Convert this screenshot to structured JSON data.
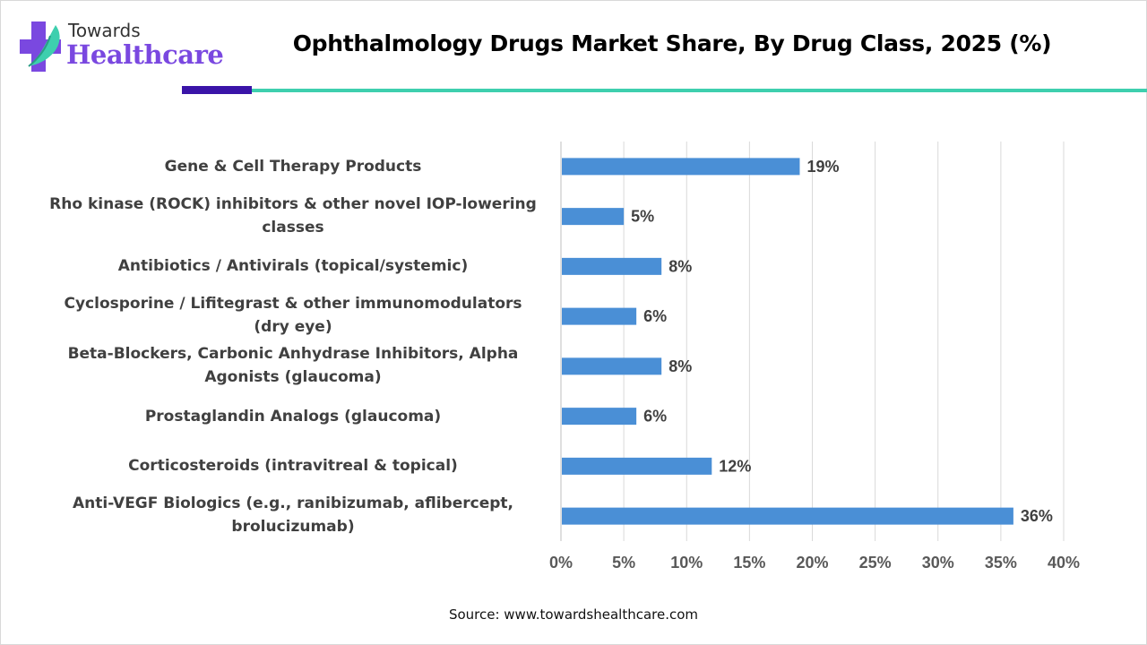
{
  "brand": {
    "name_top": "Towards",
    "name_bottom": "Healthcare",
    "colors": {
      "purple": "#7a48e0",
      "teal": "#3ecfae",
      "dark_bar": "#3a14a8"
    }
  },
  "source": "Source: www.towardshealthcare.com",
  "chart_data": {
    "type": "bar",
    "orientation": "horizontal",
    "title": "Ophthalmology Drugs Market Share, By Drug Class, 2025 (%)",
    "xlabel": "",
    "ylabel": "",
    "xlim": [
      0,
      40
    ],
    "x_ticks": [
      0,
      5,
      10,
      15,
      20,
      25,
      30,
      35,
      40
    ],
    "x_tick_labels": [
      "0%",
      "5%",
      "10%",
      "15%",
      "20%",
      "25%",
      "30%",
      "35%",
      "40%"
    ],
    "grid": "vertical",
    "bar_color": "#4a8fd6",
    "categories": [
      [
        "Gene & Cell Therapy Products"
      ],
      [
        "Rho kinase (ROCK) inhibitors & other novel IOP-lowering",
        "classes"
      ],
      [
        "Antibiotics / Antivirals (topical/systemic)"
      ],
      [
        "Cyclosporine / Lifitegrast & other immunomodulators",
        "(dry eye)"
      ],
      [
        "Beta-Blockers, Carbonic Anhydrase Inhibitors, Alpha",
        "Agonists (glaucoma)"
      ],
      [
        "Prostaglandin Analogs (glaucoma)"
      ],
      [
        "Corticosteroids (intravitreal & topical)"
      ],
      [
        "Anti-VEGF Biologics (e.g., ranibizumab, aflibercept,",
        "brolucizumab)"
      ]
    ],
    "values": [
      19,
      5,
      8,
      6,
      8,
      6,
      12,
      36
    ],
    "data_labels": [
      "19%",
      "5%",
      "8%",
      "6%",
      "8%",
      "6%",
      "12%",
      "36%"
    ]
  }
}
